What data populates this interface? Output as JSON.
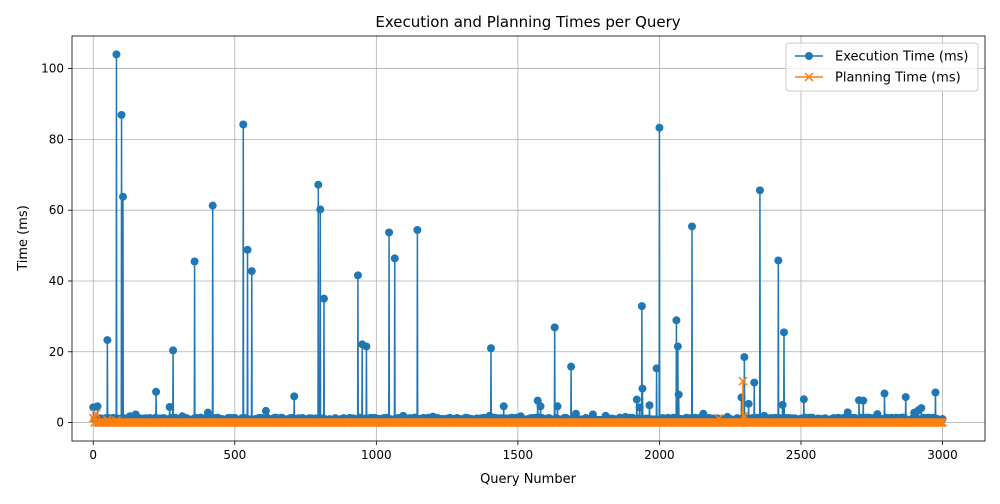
{
  "chart_data": {
    "type": "line",
    "title": "Execution and Planning Times per Query",
    "xlabel": "Query Number",
    "ylabel": "Time (ms)",
    "xlim": [
      -75,
      3150
    ],
    "ylim": [
      -5.2,
      109.2
    ],
    "xticks": [
      0,
      500,
      1000,
      1500,
      2000,
      2500,
      3000
    ],
    "yticks": [
      0,
      20,
      40,
      60,
      80,
      100
    ],
    "grid": true,
    "legend_position": "top-right",
    "n_points": 3001,
    "series": [
      {
        "name": "Execution Time (ms)",
        "color": "#1f77b4",
        "marker": "circle",
        "baseline": 1.0,
        "spikes": [
          [
            0,
            4.3
          ],
          [
            15,
            4.6
          ],
          [
            50,
            23.3
          ],
          [
            82,
            104.0
          ],
          [
            100,
            86.9
          ],
          [
            105,
            63.8
          ],
          [
            130,
            1.8
          ],
          [
            150,
            2.3
          ],
          [
            222,
            8.7
          ],
          [
            270,
            4.4
          ],
          [
            282,
            20.4
          ],
          [
            315,
            1.8
          ],
          [
            358,
            45.5
          ],
          [
            405,
            2.8
          ],
          [
            422,
            61.3
          ],
          [
            530,
            84.2
          ],
          [
            545,
            48.8
          ],
          [
            560,
            42.8
          ],
          [
            610,
            3.3
          ],
          [
            710,
            7.4
          ],
          [
            795,
            67.2
          ],
          [
            802,
            60.2
          ],
          [
            815,
            35.0
          ],
          [
            935,
            41.6
          ],
          [
            950,
            22.1
          ],
          [
            965,
            21.5
          ],
          [
            1045,
            53.7
          ],
          [
            1065,
            46.4
          ],
          [
            1095,
            1.9
          ],
          [
            1145,
            54.4
          ],
          [
            1200,
            1.7
          ],
          [
            1400,
            1.9
          ],
          [
            1405,
            21.0
          ],
          [
            1450,
            4.6
          ],
          [
            1510,
            1.8
          ],
          [
            1570,
            6.2
          ],
          [
            1580,
            4.6
          ],
          [
            1630,
            26.9
          ],
          [
            1640,
            4.6
          ],
          [
            1688,
            15.8
          ],
          [
            1705,
            2.5
          ],
          [
            1765,
            2.3
          ],
          [
            1810,
            1.9
          ],
          [
            1880,
            1.6
          ],
          [
            1920,
            6.5
          ],
          [
            1930,
            4.3
          ],
          [
            1938,
            32.9
          ],
          [
            1940,
            9.6
          ],
          [
            1965,
            4.9
          ],
          [
            1990,
            15.3
          ],
          [
            2000,
            83.3
          ],
          [
            2060,
            28.9
          ],
          [
            2065,
            21.5
          ],
          [
            2068,
            7.9
          ],
          [
            2115,
            55.4
          ],
          [
            2155,
            2.5
          ],
          [
            2240,
            1.6
          ],
          [
            2290,
            7.1
          ],
          [
            2300,
            18.5
          ],
          [
            2315,
            5.3
          ],
          [
            2335,
            11.3
          ],
          [
            2355,
            65.6
          ],
          [
            2370,
            1.9
          ],
          [
            2420,
            45.8
          ],
          [
            2435,
            5.0
          ],
          [
            2440,
            25.5
          ],
          [
            2510,
            6.6
          ],
          [
            2665,
            2.9
          ],
          [
            2705,
            6.3
          ],
          [
            2720,
            6.2
          ],
          [
            2770,
            2.4
          ],
          [
            2795,
            8.2
          ],
          [
            2870,
            7.2
          ],
          [
            2900,
            2.8
          ],
          [
            2915,
            3.5
          ],
          [
            2925,
            4.1
          ],
          [
            2975,
            8.5
          ],
          [
            3000,
            1.0
          ]
        ]
      },
      {
        "name": "Planning Time (ms)",
        "color": "#ff7f0e",
        "marker": "x",
        "baseline": 0.0,
        "spikes": [
          [
            0,
            1.3
          ],
          [
            10,
            2.5
          ],
          [
            50,
            0.8
          ],
          [
            82,
            0.6
          ],
          [
            2210,
            1.2
          ],
          [
            2295,
            11.7
          ],
          [
            2300,
            2.0
          ]
        ]
      }
    ]
  }
}
